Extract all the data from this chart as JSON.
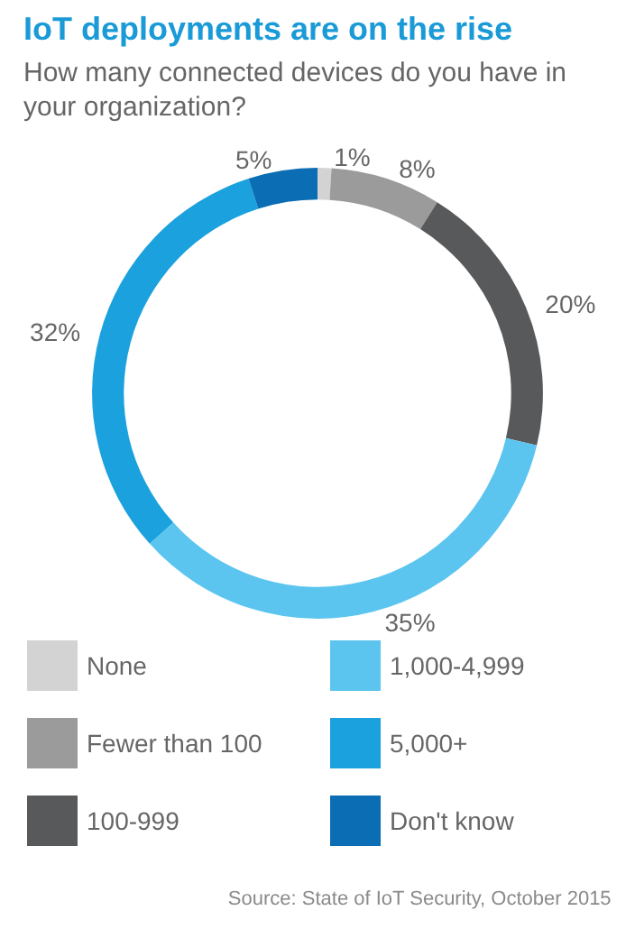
{
  "chart_data": {
    "type": "donut",
    "title": "IoT deployments are on the rise",
    "subtitle": "How many connected devices do you have in your organization?",
    "categories": [
      "None",
      "Fewer than 100",
      "100-999",
      "1,000-4,999",
      "5,000+",
      "Don't know"
    ],
    "values": [
      1,
      8,
      20,
      35,
      32,
      5
    ],
    "colors": [
      "#d3d3d3",
      "#9b9b9b",
      "#58595b",
      "#5cc5ef",
      "#1ba1dd",
      "#0b6db3"
    ],
    "value_labels": [
      "1%",
      "8%",
      "20%",
      "35%",
      "32%",
      "5%"
    ],
    "legend": "bottom",
    "annotations": [
      "Source: State of IoT Security, October 2015"
    ]
  }
}
